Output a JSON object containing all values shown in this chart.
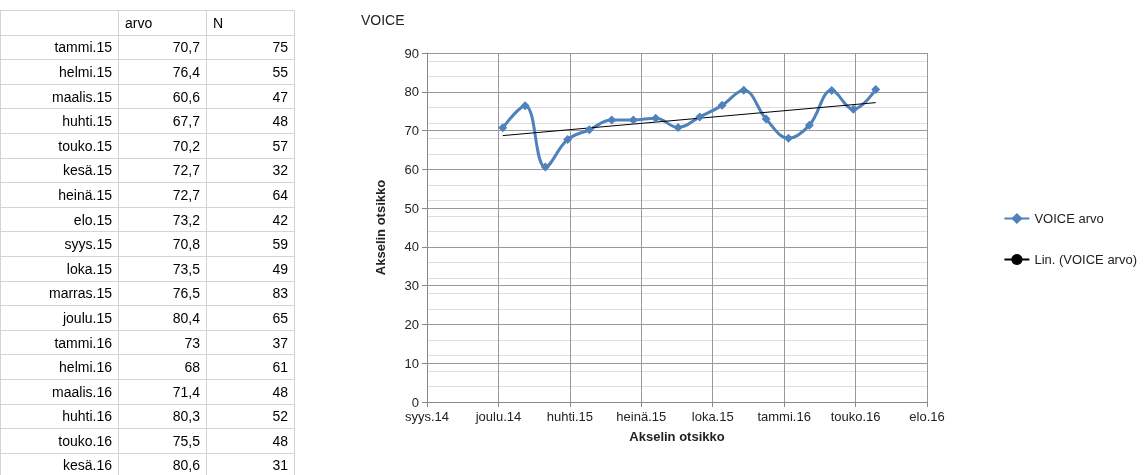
{
  "chart_data": [
    {
      "type": "other",
      "categories": [
        "tammi.15",
        "helmi.15",
        "maalis.15",
        "huhti.15",
        "touko.15",
        "kesä.15",
        "heinä.15",
        "elo.15",
        "syys.15",
        "loka.15",
        "marras.15",
        "joulu.15",
        "tammi.16",
        "helmi.16",
        "maalis.16",
        "huhti.16",
        "touko.16",
        "kesä.16"
      ],
      "series": [
        {
          "name": "arvo",
          "values": [
            70.7,
            76.4,
            60.6,
            67.7,
            70.2,
            72.7,
            72.7,
            73.2,
            70.8,
            73.5,
            76.5,
            80.4,
            73,
            68,
            71.4,
            80.3,
            75.5,
            80.6
          ],
          "value_labels": [
            "70,7",
            "76,4",
            "60,6",
            "67,7",
            "70,2",
            "72,7",
            "72,7",
            "73,2",
            "70,8",
            "73,5",
            "76,5",
            "80,4",
            "73",
            "68",
            "71,4",
            "80,3",
            "75,5",
            "80,6"
          ]
        },
        {
          "name": "N",
          "values": [
            75,
            55,
            47,
            48,
            57,
            32,
            64,
            42,
            59,
            49,
            83,
            65,
            37,
            61,
            48,
            52,
            48,
            31
          ]
        }
      ],
      "data_labels": true
    },
    {
      "type": "line",
      "title": "VOICE",
      "xlabel": "Akselin otsikko",
      "ylabel": "Akselin otsikko",
      "x": [
        "2015-01",
        "2015-02",
        "2015-03",
        "2015-04",
        "2015-05",
        "2015-06",
        "2015-07",
        "2015-08",
        "2015-09",
        "2015-10",
        "2015-11",
        "2015-12",
        "2016-01",
        "2016-02",
        "2016-03",
        "2016-04",
        "2016-05",
        "2016-06"
      ],
      "series": [
        {
          "name": "VOICE arvo",
          "color": "#4f81bd",
          "marker": "diamond",
          "values": [
            70.7,
            76.4,
            60.6,
            67.7,
            70.2,
            72.7,
            72.7,
            73.2,
            70.8,
            73.5,
            76.5,
            80.4,
            73,
            68,
            71.4,
            80.3,
            75.5,
            80.6
          ]
        },
        {
          "name": "Lin. (VOICE arvo)",
          "type": "line",
          "color": "#000000",
          "marker": "none",
          "x": [
            "2015-01",
            "2016-06"
          ],
          "values": [
            68.7,
            77.2
          ]
        }
      ],
      "xlim": [
        "2014-09-18",
        "2016-08-11"
      ],
      "xticks": [
        {
          "value": "2014-09-18",
          "label": "syys.14"
        },
        {
          "value": "2014-12-26",
          "label": "joulu.14"
        },
        {
          "value": "2015-04-04",
          "label": "huhti.15"
        },
        {
          "value": "2015-07-12",
          "label": "heinä.15"
        },
        {
          "value": "2015-10-19",
          "label": "loka.15"
        },
        {
          "value": "2016-01-26",
          "label": "tammi.16"
        },
        {
          "value": "2016-05-04",
          "label": "touko.16"
        },
        {
          "value": "2016-08-11",
          "label": "elo.16"
        }
      ],
      "ylim": [
        0,
        90
      ],
      "yticks": [
        0,
        10,
        20,
        30,
        40,
        50,
        60,
        70,
        80,
        90
      ],
      "grid": true,
      "legend": "right"
    }
  ]
}
